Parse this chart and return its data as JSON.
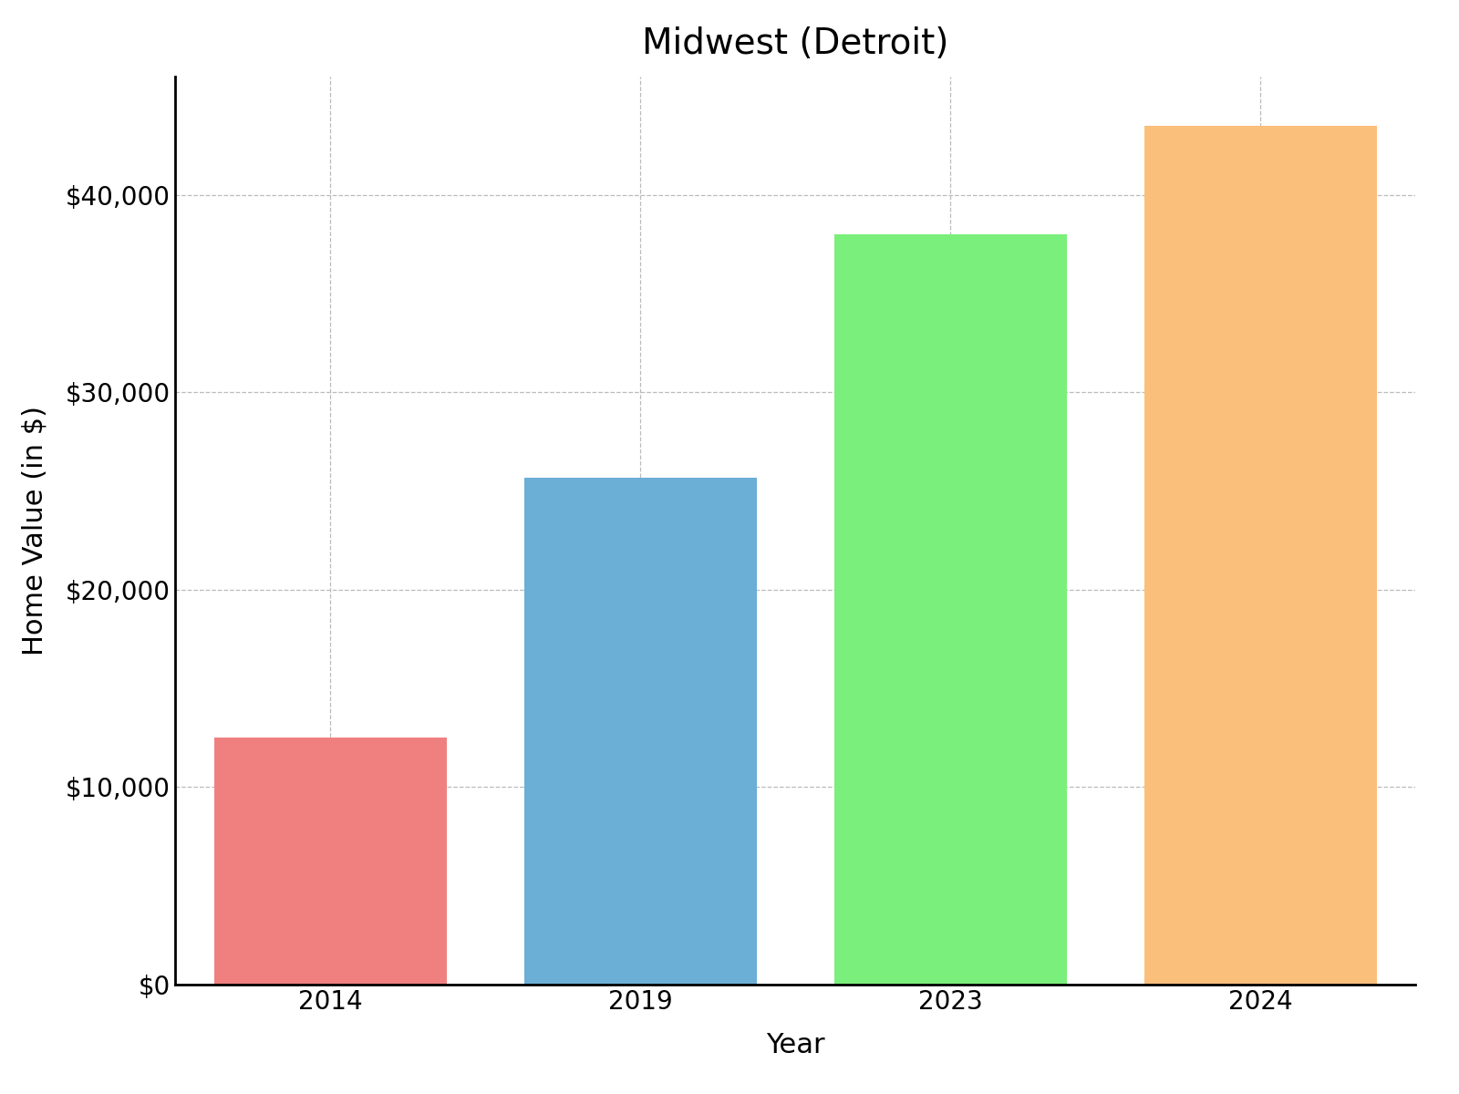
{
  "title": "Midwest (Detroit)",
  "xlabel": "Year",
  "ylabel": "Home Value (in $)",
  "categories": [
    "2014",
    "2019",
    "2023",
    "2024"
  ],
  "values": [
    12500,
    25700,
    38000,
    43500
  ],
  "bar_colors": [
    "#F08080",
    "#6BAED6",
    "#7BEF7B",
    "#FBBF7C"
  ],
  "ylim": [
    0,
    46000
  ],
  "yticks": [
    0,
    10000,
    20000,
    30000,
    40000
  ],
  "ytick_labels": [
    "$0",
    "$10,000",
    "$20,000",
    "$30,000",
    "$40,000"
  ],
  "background_color": "#ffffff",
  "grid_color": "#bbbbbb",
  "title_fontsize": 28,
  "axis_label_fontsize": 22,
  "tick_fontsize": 20,
  "bar_width": 0.75
}
